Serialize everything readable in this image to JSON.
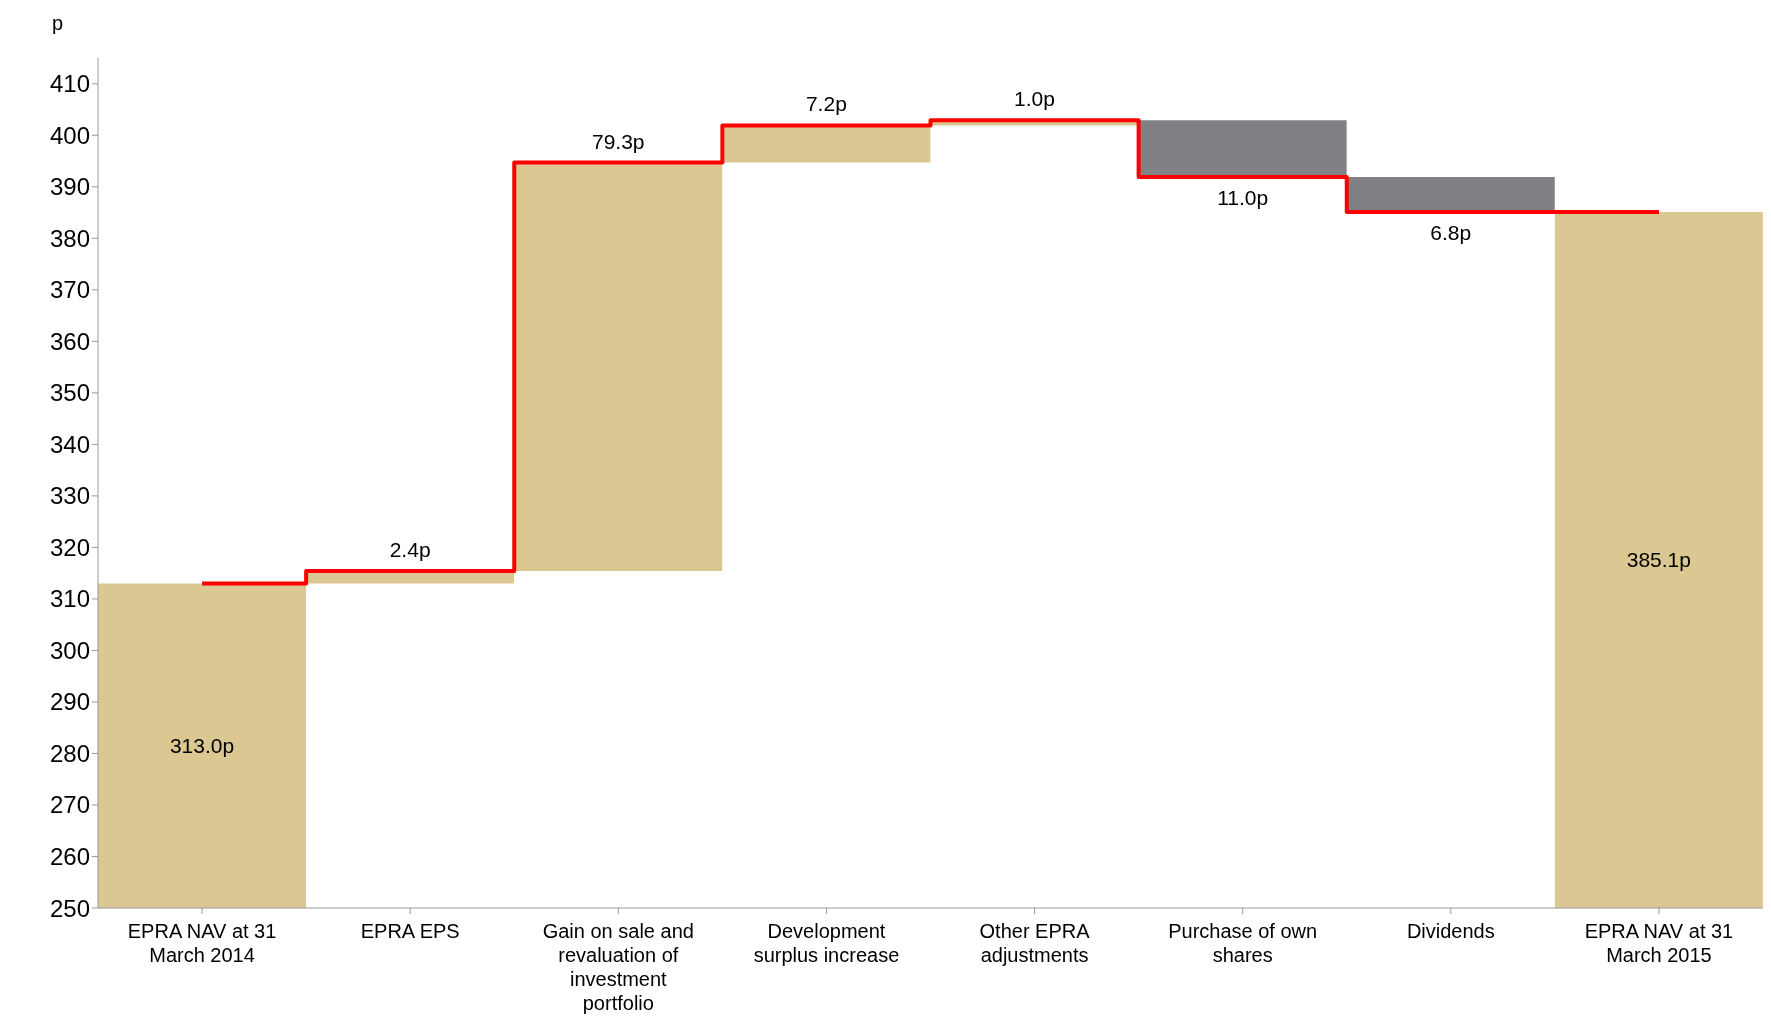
{
  "chart_data": {
    "type": "bar",
    "ylabel": "p",
    "categories": [
      "EPRA NAV at 31 March 2014",
      "EPRA EPS",
      "Gain on sale and revaluation of investment portfolio",
      "Development surplus increase",
      "Other EPRA adjustments",
      "Purchase of own shares",
      "Dividends",
      "EPRA NAV at 31 March 2015"
    ],
    "series": [
      {
        "values": [
          313.0,
          2.4,
          79.3,
          7.2,
          1.0,
          -11.0,
          -6.8,
          385.1
        ],
        "base": [
          null,
          313.0,
          315.4,
          394.7,
          401.9,
          402.9,
          391.9,
          null
        ],
        "colors": [
          "#dbc791",
          "#dbc791",
          "#dbc791",
          "#dbc791",
          "#dbc791",
          "#808184",
          "#808184",
          "#dbc791"
        ],
        "value_labels": [
          "313.0p",
          "2.4p",
          "79.3p",
          "7.2p",
          "1.0p",
          "11.0p",
          "6.8p",
          "385.1p"
        ]
      },
      {
        "type": "step",
        "color": "#ff0000",
        "values": [
          313.0,
          315.4,
          394.7,
          401.9,
          402.9,
          391.9,
          385.1,
          385.1
        ]
      }
    ],
    "ylim": [
      250,
      415
    ],
    "yticks": [
      250,
      260,
      270,
      280,
      290,
      300,
      310,
      320,
      330,
      340,
      350,
      360,
      370,
      380,
      390,
      400,
      410
    ],
    "grid": false,
    "legend": false
  }
}
